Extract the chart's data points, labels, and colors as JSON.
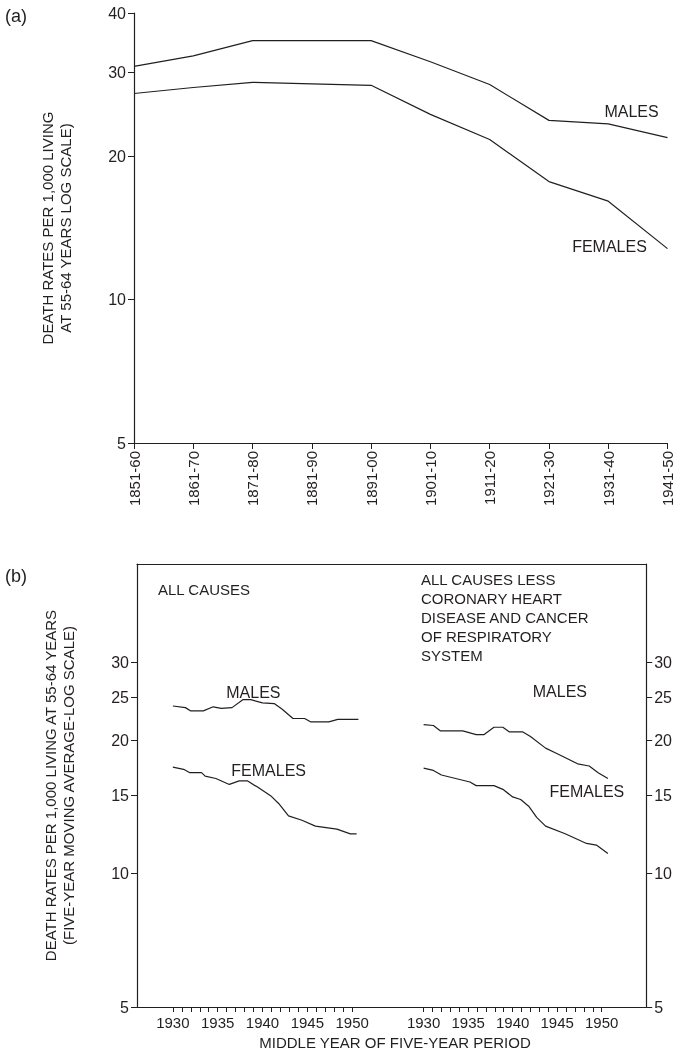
{
  "chart_data": [
    {
      "type": "line",
      "title": "(a)",
      "ylabel": "DEATH RATES PER 1,000 LIVING\nAT 55-64 YEARS LOG SCALE)",
      "log": "y",
      "marker": "none",
      "categories": [
        "1851-60",
        "1861-70",
        "1871-80",
        "1881-90",
        "1891-00",
        "1901-10",
        "1911-20",
        "1921-30",
        "1931-40",
        "1941-50"
      ],
      "ylim": [
        5,
        40
      ],
      "yticks": [
        5,
        10,
        20,
        30,
        40
      ],
      "series": [
        {
          "name": "MALES",
          "color": "#231f20",
          "values": [
            30.9,
            32.5,
            35,
            35,
            35,
            31.6,
            28.3,
            23.8,
            23.4,
            21.9
          ]
        },
        {
          "name": "FEMALES",
          "color": "#231f20",
          "values": [
            27.1,
            27.9,
            28.6,
            28.4,
            28.2,
            24.5,
            21.7,
            17.7,
            16.1,
            12.8
          ]
        }
      ]
    },
    {
      "type": "line",
      "title": "(b)",
      "ylabel": "DEATH RATES PER 1,000 LIVING AT 55-64 YEARS\n(FIVE-YEAR MOVING AVERAGE-LOG SCALE)",
      "xlabel": "MIDDLE YEAR OF FIVE-YEAR PERIOD",
      "log": "y",
      "marker": "none",
      "annotations": [
        "ALL CAUSES"
      ],
      "xlim": [
        1926,
        1954
      ],
      "xticks": [
        1930,
        {
          "value": 1931,
          "label": null
        },
        {
          "value": 1932,
          "label": null
        },
        {
          "value": 1933,
          "label": null
        },
        {
          "value": 1934,
          "label": null
        },
        1935,
        {
          "value": 1936,
          "label": null
        },
        {
          "value": 1937,
          "label": null
        },
        {
          "value": 1938,
          "label": null
        },
        {
          "value": 1939,
          "label": null
        },
        1940,
        {
          "value": 1941,
          "label": null
        },
        {
          "value": 1942,
          "label": null
        },
        {
          "value": 1943,
          "label": null
        },
        {
          "value": 1944,
          "label": null
        },
        1945,
        {
          "value": 1946,
          "label": null
        },
        {
          "value": 1947,
          "label": null
        },
        {
          "value": 1948,
          "label": null
        },
        {
          "value": 1949,
          "label": null
        },
        1950
      ],
      "ylim": [
        5,
        50
      ],
      "yticks": [
        5,
        10,
        15,
        20,
        25,
        30
      ],
      "series": [
        {
          "name": "MALES",
          "color": "#231f20",
          "x": [
            1930,
            1931.4,
            1932,
            1933.4,
            1934.5,
            1935.4,
            1936.6,
            1937.8,
            1938.7,
            1940,
            1941.3,
            1942.2,
            1943.4,
            1944.7,
            1945.4,
            1947.4,
            1948.4,
            1950.7
          ],
          "values": [
            23.9,
            23.7,
            23.3,
            23.3,
            23.8,
            23.6,
            23.7,
            24.7,
            24.7,
            24.3,
            24.2,
            23.5,
            22.4,
            22.4,
            22.0,
            22.0,
            22.3,
            22.3
          ]
        },
        {
          "name": "FEMALES",
          "color": "#231f20",
          "x": [
            1930,
            1931.2,
            1931.9,
            1933.2,
            1933.6,
            1934.8,
            1936.3,
            1937.4,
            1938.3,
            1939.4,
            1940.9,
            1941.8,
            1942.9,
            1944.4,
            1945.9,
            1948.3,
            1949.8,
            1950.5
          ],
          "values": [
            17.4,
            17.2,
            16.9,
            16.9,
            16.6,
            16.4,
            15.9,
            16.2,
            16.2,
            15.7,
            15.0,
            14.4,
            13.5,
            13.2,
            12.8,
            12.6,
            12.3,
            12.3
          ]
        }
      ]
    },
    {
      "type": "line",
      "log": "y2",
      "marker": "none",
      "annotations": [
        "ALL CAUSES LESS\nCORONARY HEART\nDISEASE AND CANCER\nOF RESPIRATORY\nSYSTEM"
      ],
      "xlim": [
        1926,
        1955
      ],
      "xticks": [
        1930,
        {
          "value": 1931,
          "label": null
        },
        {
          "value": 1932,
          "label": null
        },
        {
          "value": 1933,
          "label": null
        },
        {
          "value": 1934,
          "label": null
        },
        1935,
        {
          "value": 1936,
          "label": null
        },
        {
          "value": 1937,
          "label": null
        },
        {
          "value": 1938,
          "label": null
        },
        {
          "value": 1939,
          "label": null
        },
        1940,
        {
          "value": 1941,
          "label": null
        },
        {
          "value": 1942,
          "label": null
        },
        {
          "value": 1943,
          "label": null
        },
        {
          "value": 1944,
          "label": null
        },
        1945,
        {
          "value": 1946,
          "label": null
        },
        {
          "value": 1947,
          "label": null
        },
        {
          "value": 1948,
          "label": null
        },
        {
          "value": 1949,
          "label": null
        },
        1950
      ],
      "y2lim": [
        5,
        50
      ],
      "y2ticks": [
        5,
        10,
        15,
        20,
        25,
        30
      ],
      "series": [
        {
          "name": "MALES",
          "color": "#231f20",
          "axis": "y2",
          "x": [
            1930,
            1931.1,
            1931.9,
            1934.4,
            1935.9,
            1936.8,
            1937.9,
            1938.9,
            1939.6,
            1941.1,
            1942,
            1943.7,
            1944.9,
            1947.3,
            1948.6,
            1949.6,
            1950.7
          ],
          "values": [
            21.7,
            21.6,
            21.0,
            21.0,
            20.6,
            20.6,
            21.4,
            21.4,
            20.9,
            20.9,
            20.4,
            19.2,
            18.7,
            17.7,
            17.5,
            16.9,
            16.4
          ]
        },
        {
          "name": "FEMALES",
          "color": "#231f20",
          "axis": "y2",
          "x": [
            1930,
            1931.1,
            1932,
            1935.2,
            1935.9,
            1937.9,
            1938.9,
            1940,
            1940.9,
            1941.8,
            1942.7,
            1943.7,
            1945.9,
            1948.3,
            1949.4,
            1950.7
          ],
          "values": [
            17.3,
            17.1,
            16.7,
            16.1,
            15.8,
            15.8,
            15.5,
            14.9,
            14.7,
            14.2,
            13.4,
            12.8,
            12.3,
            11.7,
            11.6,
            11.1
          ]
        }
      ]
    }
  ]
}
